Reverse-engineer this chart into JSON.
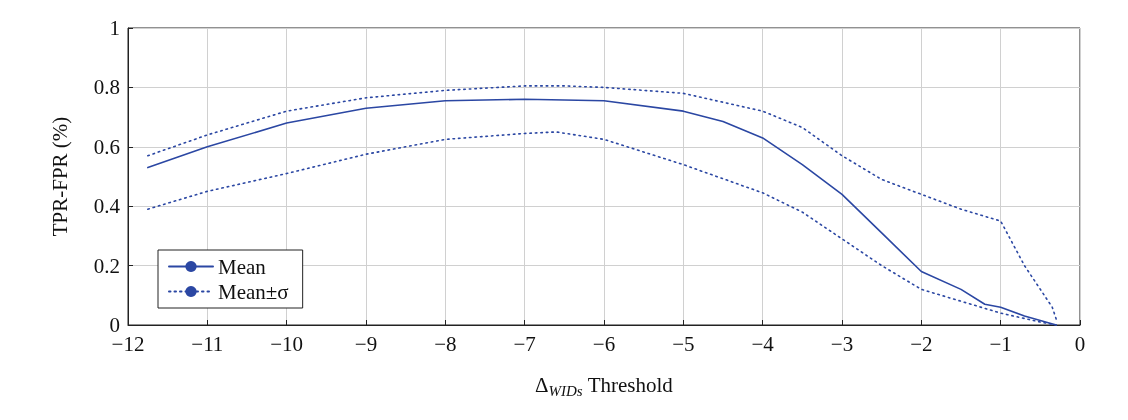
{
  "chart_data": {
    "type": "line",
    "xlabel": "Δ$_{WIDs}$ Threshold",
    "ylabel": "TPR-FPR (%)",
    "xlim": [
      -12,
      0
    ],
    "xticks": [
      -12,
      -11,
      -10,
      -9,
      -8,
      -7,
      -6,
      -5,
      -4,
      -3,
      -2,
      -1,
      0
    ],
    "ylim": [
      0,
      1
    ],
    "yticks": [
      0,
      0.2,
      0.4,
      0.6,
      0.8,
      1
    ],
    "grid": true,
    "legend": "bottom left",
    "marker": "none",
    "series": [
      {
        "name": "Mean",
        "color": "#2b47a3",
        "line_style": "solid",
        "x": [
          -11.75,
          -11,
          -10,
          -9,
          -8,
          -7,
          -6,
          -5,
          -4.5,
          -4,
          -3.5,
          -3,
          -2.5,
          -2,
          -1.5,
          -1.2,
          -1,
          -0.7,
          -0.3
        ],
        "values": [
          0.53,
          0.6,
          0.68,
          0.73,
          0.755,
          0.76,
          0.755,
          0.72,
          0.685,
          0.63,
          0.54,
          0.44,
          0.31,
          0.18,
          0.12,
          0.07,
          0.06,
          0.03,
          0
        ]
      },
      {
        "name": "Mean±σ",
        "color": "#2b47a3",
        "line_style": "dotted",
        "x": [
          -11.75,
          -11,
          -10,
          -9,
          -8,
          -7,
          -6.5,
          -6,
          -5,
          -4.5,
          -4,
          -3.5,
          -3,
          -2.5,
          -2,
          -1.5,
          -1,
          -0.7,
          -0.5,
          -0.35,
          -0.3
        ],
        "values": [
          0.57,
          0.64,
          0.72,
          0.765,
          0.79,
          0.805,
          0.805,
          0.8,
          0.78,
          0.75,
          0.72,
          0.665,
          0.57,
          0.49,
          0.44,
          0.39,
          0.35,
          0.2,
          0.12,
          0.06,
          0.02
        ]
      },
      {
        "color": "#2b47a3",
        "line_style": "dotted",
        "x": [
          -11.75,
          -11,
          -10,
          -9,
          -8,
          -7,
          -6.6,
          -6,
          -5,
          -4,
          -3.5,
          -3,
          -2.5,
          -2,
          -1.5,
          -1,
          -0.5,
          -0.3
        ],
        "values": [
          0.39,
          0.45,
          0.51,
          0.575,
          0.625,
          0.645,
          0.65,
          0.625,
          0.54,
          0.445,
          0.38,
          0.29,
          0.2,
          0.12,
          0.08,
          0.04,
          0.01,
          0
        ]
      }
    ]
  }
}
